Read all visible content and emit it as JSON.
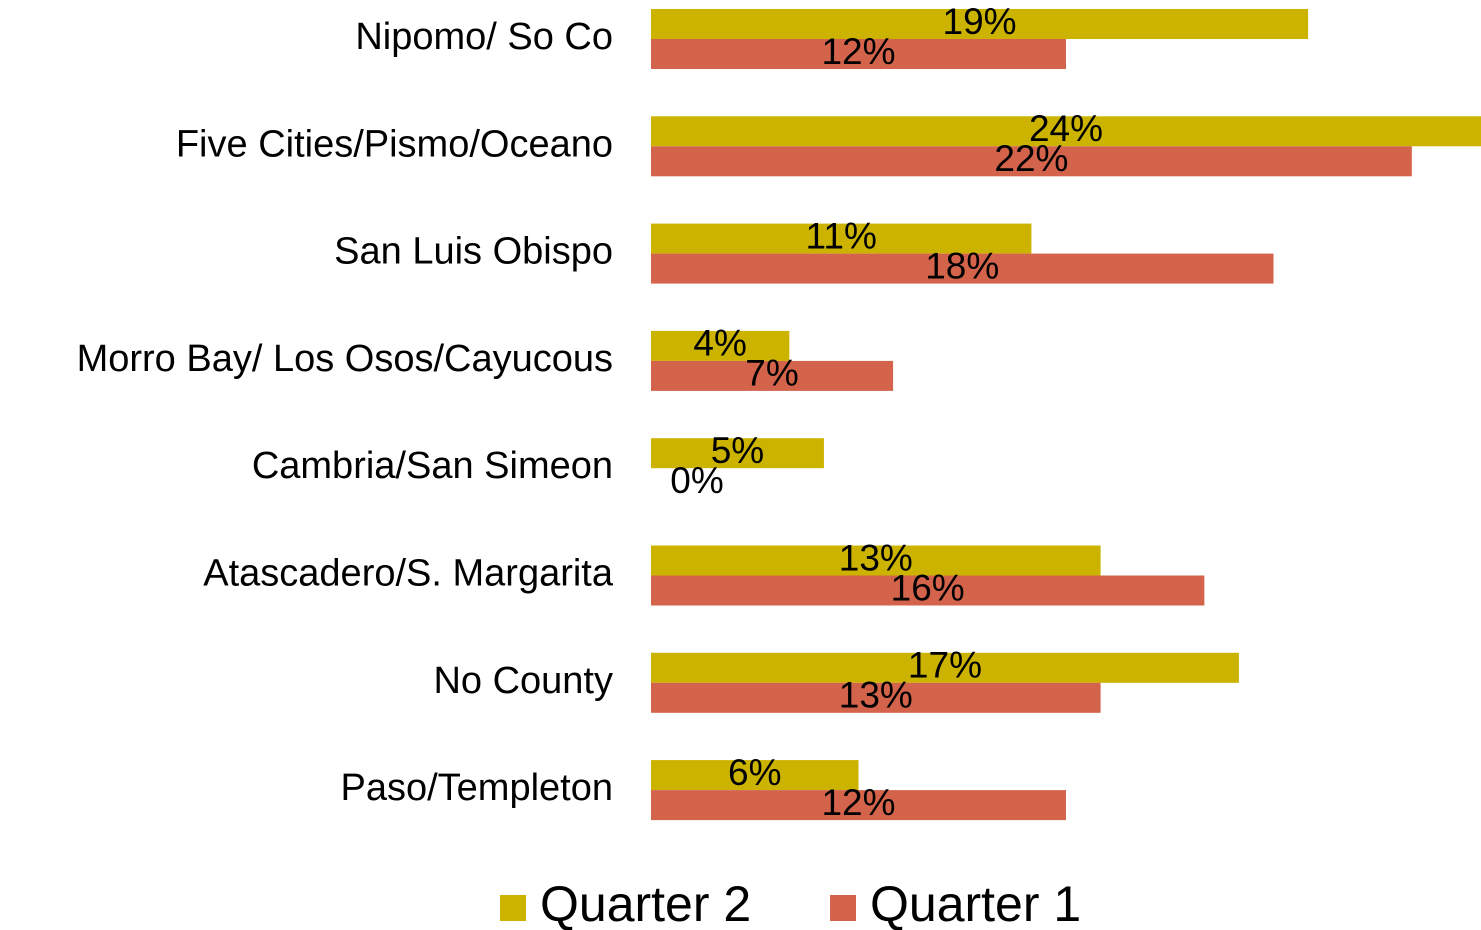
{
  "chart_data": {
    "type": "bar",
    "orientation": "horizontal",
    "categories": [
      "Nipomo/ So Co",
      "Five Cities/Pismo/Oceano",
      "San Luis Obispo",
      "Morro Bay/ Los Osos/Cayucous",
      "Cambria/San Simeon",
      "Atascadero/S. Margarita",
      "No County",
      "Paso/Templeton"
    ],
    "series": [
      {
        "name": "Quarter 2",
        "color": "#cbb300",
        "values": [
          19,
          24,
          11,
          4,
          5,
          13,
          17,
          6
        ],
        "value_labels": [
          "19%",
          "24%",
          "11%",
          "4%",
          "5%",
          "13%",
          "17%",
          "6%"
        ]
      },
      {
        "name": "Quarter 1",
        "color": "#d4634b",
        "values": [
          12,
          22,
          18,
          7,
          0,
          16,
          13,
          12
        ],
        "value_labels": [
          "12%",
          "22%",
          "18%",
          "7%",
          "0%",
          "16%",
          "13%",
          "12%"
        ]
      }
    ],
    "legend": "bottom"
  }
}
